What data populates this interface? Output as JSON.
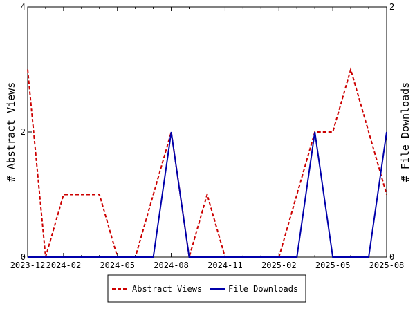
{
  "chart_data": {
    "type": "line",
    "x": [
      "2023-12",
      "2024-01",
      "2024-02",
      "2024-03",
      "2024-04",
      "2024-05",
      "2024-06",
      "2024-07",
      "2024-08",
      "2024-09",
      "2024-10",
      "2024-11",
      "2024-12",
      "2025-01",
      "2025-02",
      "2025-03",
      "2025-04",
      "2025-05",
      "2025-06",
      "2025-07",
      "2025-08"
    ],
    "x_tick_labels": [
      "2023-12",
      "2024-02",
      "2024-05",
      "2024-08",
      "2024-11",
      "2025-02",
      "2025-05",
      "2025-08"
    ],
    "series": [
      {
        "name": "Abstract Views",
        "axis": "left",
        "color": "#cc0000",
        "dash": "dashed",
        "values": [
          3,
          0,
          1,
          1,
          1,
          0,
          0,
          1,
          2,
          0,
          1,
          0,
          0,
          0,
          0,
          1,
          2,
          2,
          3,
          2,
          1
        ]
      },
      {
        "name": "File Downloads",
        "axis": "right",
        "color": "#0000aa",
        "dash": "solid",
        "values": [
          0,
          0,
          0,
          0,
          0,
          0,
          0,
          0,
          1,
          0,
          0,
          0,
          0,
          0,
          0,
          0,
          1,
          0,
          0,
          0,
          1
        ]
      }
    ],
    "ylabel_left": "# Abstract Views",
    "ylabel_right": "# File Downloads",
    "ylim_left": [
      0,
      4
    ],
    "ylim_right": [
      0,
      2
    ],
    "yticks_left": [
      0,
      2,
      4
    ],
    "yticks_right": [
      0,
      2
    ],
    "legend_position": "bottom",
    "grid": false
  }
}
